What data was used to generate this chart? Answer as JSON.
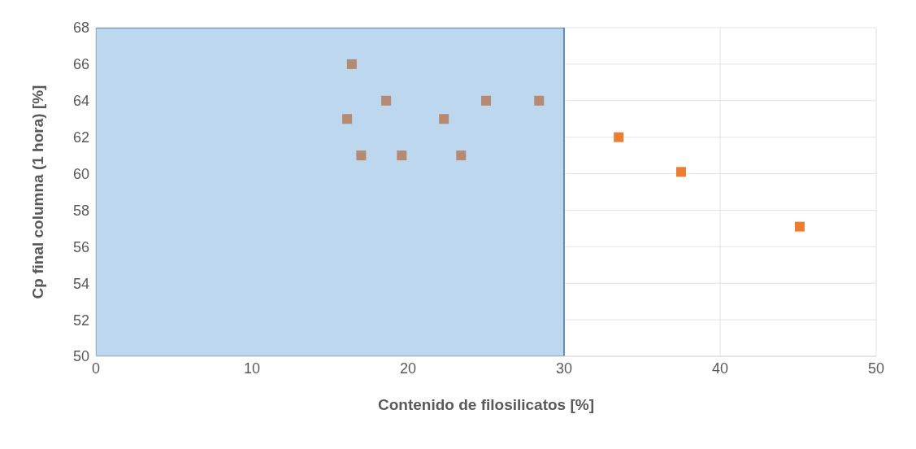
{
  "chart_data": {
    "type": "scatter",
    "xlabel": "Contenido de filosilicatos [%]",
    "ylabel": "Cp final columna (1 hora) [%]",
    "x": [
      16.4,
      18.6,
      16.1,
      17.0,
      19.6,
      22.3,
      23.4,
      25.0,
      28.4,
      33.5,
      37.5,
      45.1
    ],
    "values": [
      66,
      64,
      63,
      61,
      61,
      63,
      61,
      64,
      64,
      62,
      60.1,
      57.1
    ],
    "colors": [
      "#b58a72",
      "#b58a72",
      "#b58a72",
      "#b58a72",
      "#b58a72",
      "#b58a72",
      "#b58a72",
      "#b58a72",
      "#b58a72",
      "#ed7d31",
      "#ed7d31",
      "#ed7d31"
    ],
    "xlim": [
      0,
      50
    ],
    "xticks": [
      0,
      10,
      20,
      30,
      40,
      50
    ],
    "ylim": [
      50,
      68
    ],
    "yticks": [
      50,
      52,
      54,
      56,
      58,
      60,
      62,
      64,
      66,
      68
    ],
    "grid": true,
    "marker": "square",
    "bands": [
      {
        "axis": "x",
        "from": 0,
        "to": 30,
        "color": "#bdd7ee"
      }
    ]
  }
}
